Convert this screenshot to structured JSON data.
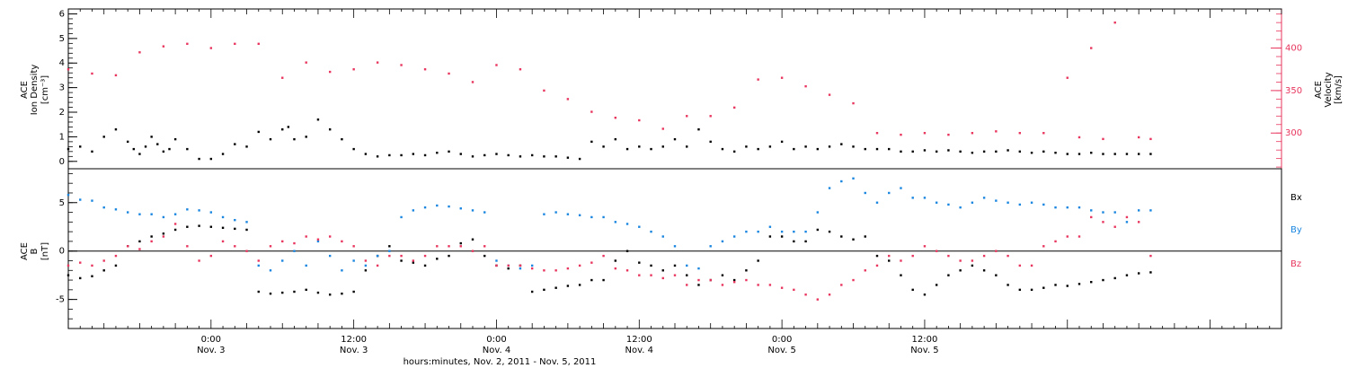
{
  "colors": {
    "black": "#000000",
    "pink": "#e8365e",
    "blue": "#1a86e0",
    "axis_right": "#e8365e"
  },
  "chart_data": [
    {
      "type": "scatter",
      "panel": "top",
      "left_axis_label": [
        "ACE",
        "Ion Density",
        "[cm⁻³]"
      ],
      "right_axis_label": [
        "ACE",
        "Velocity",
        "[km/s]"
      ],
      "ylim_left": [
        -0.3,
        6.2
      ],
      "ylim_right": [
        258,
        446
      ],
      "left_ticks": [
        0,
        1,
        2,
        3,
        4,
        5,
        6
      ],
      "right_ticks": [
        300,
        350,
        400
      ],
      "series": [
        {
          "axis": "left",
          "color": "black",
          "x": [
            0,
            1,
            2,
            3,
            4,
            5,
            5.5,
            6,
            6.5,
            7,
            7.5,
            8,
            8.5,
            9,
            10,
            11,
            12,
            13,
            14,
            15,
            16,
            17,
            18,
            18.5,
            19,
            20,
            21,
            22,
            23,
            24,
            25,
            26,
            27,
            28,
            29,
            30,
            31,
            32,
            33,
            34,
            35,
            36,
            37,
            38,
            39,
            40,
            41,
            42,
            43,
            44,
            45,
            46,
            47,
            48,
            49,
            50,
            51,
            52,
            53,
            54,
            55,
            56,
            57,
            58,
            59,
            60,
            61,
            62,
            63,
            64,
            65,
            66,
            67,
            68,
            69,
            70,
            71,
            72,
            73,
            74,
            75,
            76,
            77,
            78,
            79,
            80,
            81,
            82,
            83,
            84,
            85,
            86,
            87,
            88,
            89,
            90,
            91
          ],
          "y": [
            0.5,
            0.6,
            0.4,
            1.0,
            1.3,
            0.8,
            0.5,
            0.3,
            0.6,
            1.0,
            0.7,
            0.4,
            0.5,
            0.9,
            0.5,
            0.1,
            0.1,
            0.3,
            0.7,
            0.6,
            1.2,
            0.9,
            1.3,
            1.4,
            0.9,
            1.0,
            1.7,
            1.3,
            0.9,
            0.5,
            0.3,
            0.2,
            0.25,
            0.25,
            0.3,
            0.25,
            0.35,
            0.4,
            0.3,
            0.2,
            0.25,
            0.3,
            0.25,
            0.2,
            0.25,
            0.2,
            0.2,
            0.15,
            0.1,
            0.8,
            0.6,
            0.9,
            0.5,
            0.6,
            0.5,
            0.6,
            0.9,
            0.6,
            1.3,
            0.8,
            0.5,
            0.4,
            0.6,
            0.5,
            0.6,
            0.8,
            0.5,
            0.6,
            0.5,
            0.6,
            0.7,
            0.6,
            0.5,
            0.5,
            0.5,
            0.4,
            0.4,
            0.45,
            0.4,
            0.45,
            0.4,
            0.35,
            0.4,
            0.4,
            0.45,
            0.4,
            0.35,
            0.4,
            0.35,
            0.3,
            0.3,
            0.35,
            0.3,
            0.3,
            0.3,
            0.3,
            0.3
          ]
        },
        {
          "axis": "right",
          "color": "pink",
          "x": [
            0,
            2,
            4,
            6,
            8,
            10,
            12,
            14,
            16,
            18,
            20,
            22,
            24,
            26,
            28,
            30,
            32,
            34,
            36,
            38,
            40,
            42,
            44,
            46,
            48,
            50,
            52,
            54,
            56,
            58,
            60,
            62,
            64,
            66,
            68,
            70,
            72,
            74,
            76,
            78,
            80,
            82,
            84,
            85,
            86,
            87,
            88,
            90,
            91
          ],
          "y": [
            375,
            370,
            368,
            395,
            402,
            405,
            400,
            405,
            405,
            365,
            383,
            372,
            375,
            383,
            380,
            375,
            370,
            360,
            380,
            375,
            350,
            340,
            325,
            318,
            315,
            305,
            320,
            320,
            330,
            363,
            365,
            355,
            345,
            335,
            300,
            298,
            300,
            298,
            300,
            302,
            300,
            300,
            365,
            295,
            400,
            293,
            430,
            295,
            293
          ]
        }
      ]
    },
    {
      "type": "scatter",
      "panel": "bottom",
      "left_axis_label": [
        "ACE",
        "B",
        "[nT]"
      ],
      "ylim": [
        -8,
        8.5
      ],
      "y_ticks": [
        -5,
        0,
        5
      ],
      "zero_line": true,
      "legend": [
        "Bx",
        "By",
        "Bz"
      ],
      "legend_position": "right",
      "series": [
        {
          "name": "Bx",
          "color": "black",
          "x": [
            0,
            1,
            2,
            3,
            4,
            5,
            6,
            7,
            8,
            9,
            10,
            11,
            12,
            13,
            14,
            15,
            16,
            17,
            18,
            19,
            20,
            21,
            22,
            23,
            24,
            25,
            26,
            27,
            28,
            29,
            30,
            31,
            32,
            33,
            34,
            35,
            36,
            37,
            38,
            39,
            40,
            41,
            42,
            43,
            44,
            45,
            46,
            47,
            48,
            49,
            50,
            51,
            52,
            53,
            54,
            55,
            56,
            57,
            58,
            59,
            60,
            61,
            62,
            63,
            64,
            65,
            66,
            67,
            68,
            69,
            70,
            71,
            72,
            73,
            74,
            75,
            76,
            77,
            78,
            79,
            80,
            81,
            82,
            83,
            84,
            85,
            86,
            87,
            88,
            89,
            90,
            91
          ],
          "y": [
            -2.5,
            -2.8,
            -2.6,
            -2.0,
            -1.5,
            0.5,
            1.0,
            1.5,
            1.8,
            2.2,
            2.5,
            2.6,
            2.5,
            2.4,
            2.3,
            2.2,
            -4.2,
            -4.4,
            -4.3,
            -4.2,
            -4.0,
            -4.3,
            -4.5,
            -4.4,
            -4.2,
            -2.0,
            -0.5,
            0.5,
            -1.0,
            -1.2,
            -1.5,
            -0.8,
            -0.5,
            0.8,
            1.2,
            -0.5,
            -1.5,
            -1.8,
            -1.5,
            -4.2,
            -4.0,
            -3.8,
            -3.6,
            -3.5,
            -3.0,
            -3.0,
            -1.0,
            0.0,
            -1.2,
            -1.5,
            -2.0,
            -1.5,
            -2.5,
            -3.5,
            -3.0,
            -2.5,
            -3.0,
            -2.0,
            -1.0,
            1.5,
            1.5,
            1.0,
            1.0,
            2.2,
            2.0,
            1.5,
            1.2,
            1.5,
            -0.5,
            -1.0,
            -2.5,
            -4.0,
            -4.5,
            -3.5,
            -2.5,
            -2.0,
            -1.5,
            -2.0,
            -2.5,
            -3.5,
            -4.0,
            -4.0,
            -3.8,
            -3.5,
            -3.6,
            -3.4,
            -3.2,
            -3.0,
            -2.8,
            -2.5,
            -2.3,
            -2.2
          ]
        },
        {
          "name": "By",
          "color": "blue",
          "x": [
            0,
            1,
            2,
            3,
            4,
            5,
            6,
            7,
            8,
            9,
            10,
            11,
            12,
            13,
            14,
            15,
            16,
            17,
            18,
            19,
            20,
            21,
            22,
            23,
            24,
            25,
            26,
            27,
            28,
            29,
            30,
            31,
            32,
            33,
            34,
            35,
            36,
            37,
            38,
            39,
            40,
            41,
            42,
            43,
            44,
            45,
            46,
            47,
            48,
            49,
            50,
            51,
            52,
            53,
            54,
            55,
            56,
            57,
            58,
            59,
            60,
            61,
            62,
            63,
            64,
            65,
            66,
            67,
            68,
            69,
            70,
            71,
            72,
            73,
            74,
            75,
            76,
            77,
            78,
            79,
            80,
            81,
            82,
            83,
            84,
            85,
            86,
            87,
            88,
            89,
            90,
            91
          ],
          "y": [
            5.8,
            5.3,
            5.2,
            4.5,
            4.3,
            4.0,
            3.8,
            3.8,
            3.5,
            3.8,
            4.3,
            4.2,
            4.0,
            3.5,
            3.2,
            3.0,
            -1.5,
            -2.0,
            -1.0,
            0.0,
            -1.5,
            1.0,
            -0.5,
            -2.0,
            -1.0,
            -1.5,
            -0.5,
            0.0,
            3.5,
            4.2,
            4.5,
            4.7,
            4.6,
            4.4,
            4.2,
            4.0,
            -1.0,
            -1.5,
            -1.8,
            -1.5,
            3.8,
            4.0,
            3.8,
            3.7,
            3.5,
            3.5,
            3.0,
            2.8,
            2.5,
            2.0,
            1.5,
            0.5,
            -1.5,
            -1.8,
            0.5,
            1.0,
            1.5,
            2.0,
            2.0,
            2.5,
            2.0,
            2.0,
            2.0,
            4.0,
            6.5,
            7.2,
            7.5,
            6.0,
            5.0,
            6.0,
            6.5,
            5.5,
            5.5,
            5.0,
            4.8,
            4.5,
            5.0,
            5.5,
            5.2,
            5.0,
            4.8,
            5.0,
            4.8,
            4.5,
            4.5,
            4.5,
            4.2,
            4.0,
            4.0,
            3.0,
            4.2,
            4.2
          ]
        },
        {
          "name": "Bz",
          "color": "pink",
          "x": [
            0,
            1,
            2,
            3,
            4,
            5,
            6,
            7,
            8,
            9,
            10,
            11,
            12,
            13,
            14,
            15,
            16,
            17,
            18,
            19,
            20,
            21,
            22,
            23,
            24,
            25,
            26,
            27,
            28,
            29,
            30,
            31,
            32,
            33,
            34,
            35,
            36,
            37,
            38,
            39,
            40,
            41,
            42,
            43,
            44,
            45,
            46,
            47,
            48,
            49,
            50,
            51,
            52,
            53,
            54,
            55,
            56,
            57,
            58,
            59,
            60,
            61,
            62,
            63,
            64,
            65,
            66,
            67,
            68,
            69,
            70,
            71,
            72,
            73,
            74,
            75,
            76,
            77,
            78,
            79,
            80,
            81,
            82,
            83,
            84,
            85,
            86,
            87,
            88,
            89,
            90,
            91
          ],
          "y": [
            -1.5,
            -1.2,
            -1.5,
            -1.0,
            -0.5,
            0.5,
            0.2,
            1.0,
            1.5,
            2.8,
            0.5,
            -1.0,
            -0.5,
            1.0,
            0.5,
            0.0,
            -1.0,
            0.5,
            1.0,
            0.8,
            1.5,
            1.2,
            1.5,
            1.0,
            0.5,
            -1.0,
            -1.5,
            -0.5,
            -0.5,
            -1.0,
            -0.5,
            0.5,
            0.5,
            0.5,
            0.0,
            0.5,
            -1.5,
            -1.5,
            -1.5,
            -1.8,
            -2.0,
            -2.0,
            -1.8,
            -1.5,
            -1.2,
            -0.5,
            -1.8,
            -2.0,
            -2.5,
            -2.5,
            -2.8,
            -2.5,
            -3.5,
            -3.0,
            -3.0,
            -3.5,
            -3.2,
            -3.0,
            -3.5,
            -3.5,
            -3.8,
            -4.0,
            -4.5,
            -5.0,
            -4.5,
            -3.5,
            -3.0,
            -2.0,
            -1.5,
            -0.5,
            -1.0,
            -0.5,
            0.5,
            0.0,
            -0.5,
            -1.0,
            -1.0,
            -0.5,
            0.0,
            -0.5,
            -1.5,
            -1.5,
            0.5,
            1.0,
            1.5,
            1.5,
            3.5,
            3.0,
            2.5,
            3.5,
            3.0,
            -0.5
          ]
        }
      ]
    }
  ],
  "x_axis": {
    "range": [
      0,
      102
    ],
    "major_tick_labels": [
      {
        "x": 12,
        "time": "0:00",
        "date": "Nov. 3"
      },
      {
        "x": 24,
        "time": "12:00",
        "date": "Nov. 3"
      },
      {
        "x": 36,
        "time": "0:00",
        "date": "Nov. 4"
      },
      {
        "x": 48,
        "time": "12:00",
        "date": "Nov. 4"
      },
      {
        "x": 60,
        "time": "0:00",
        "date": "Nov. 5"
      },
      {
        "x": 72,
        "time": "12:00",
        "date": "Nov. 5"
      }
    ],
    "xlabel": "hours:minutes, Nov.  2, 2011 - Nov.  5, 2011"
  }
}
